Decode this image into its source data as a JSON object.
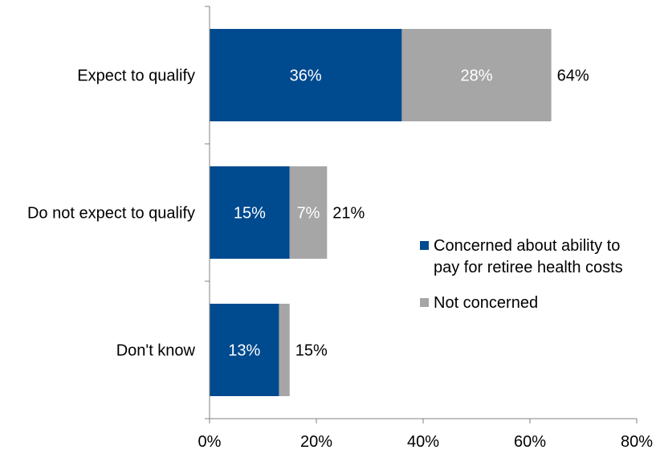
{
  "colors": {
    "concerned": "#004a8f",
    "not_concerned": "#a6a6a6",
    "axis": "#808080",
    "text": "#000000",
    "bar_label": "#ffffff"
  },
  "chart_data": {
    "type": "bar",
    "orientation": "horizontal",
    "stacked": true,
    "categories": [
      "Expect to qualify",
      "Do not expect to qualify",
      "Don't know"
    ],
    "series": [
      {
        "name": "Concerned about ability to pay for retiree health costs",
        "legend_lines": [
          "Concerned about ability to",
          "pay for retiree health costs"
        ],
        "values": [
          36,
          15,
          13
        ],
        "labels": [
          "36%",
          "15%",
          "13%"
        ]
      },
      {
        "name": "Not concerned",
        "legend_lines": [
          "Not concerned"
        ],
        "values": [
          28,
          7,
          2
        ],
        "labels": [
          "28%",
          "7%",
          ""
        ]
      }
    ],
    "totals": [
      64,
      21,
      15
    ],
    "total_labels": [
      "64%",
      "21%",
      "15%"
    ],
    "xlim": [
      0,
      80
    ],
    "xticks": [
      0,
      20,
      40,
      60,
      80
    ],
    "xtick_labels": [
      "0%",
      "20%",
      "40%",
      "60%",
      "80%"
    ],
    "grid": false,
    "legend_position": "right"
  }
}
